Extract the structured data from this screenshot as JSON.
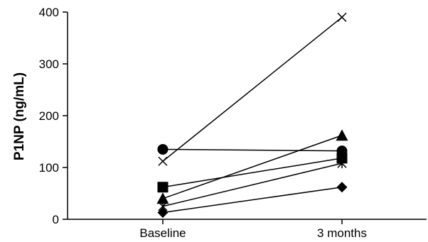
{
  "chart_data": {
    "type": "line",
    "title": "",
    "xlabel": "",
    "ylabel": "P1NP (ng/mL)",
    "categories": [
      "Baseline",
      "3 months"
    ],
    "ylim": [
      0,
      400
    ],
    "yticks": [
      "0",
      "100",
      "200",
      "300",
      "400"
    ],
    "grid": false,
    "legend": "none",
    "series": [
      {
        "marker": "cross",
        "values": [
          112,
          390
        ]
      },
      {
        "marker": "circle",
        "values": [
          135,
          132
        ]
      },
      {
        "marker": "triangle",
        "values": [
          40,
          162
        ]
      },
      {
        "marker": "square",
        "values": [
          62,
          118
        ]
      },
      {
        "marker": "asterisk",
        "values": [
          25,
          108
        ]
      },
      {
        "marker": "diamond",
        "values": [
          13,
          62
        ]
      }
    ],
    "colors": {
      "line": "#000000",
      "marker": "#000000"
    }
  }
}
